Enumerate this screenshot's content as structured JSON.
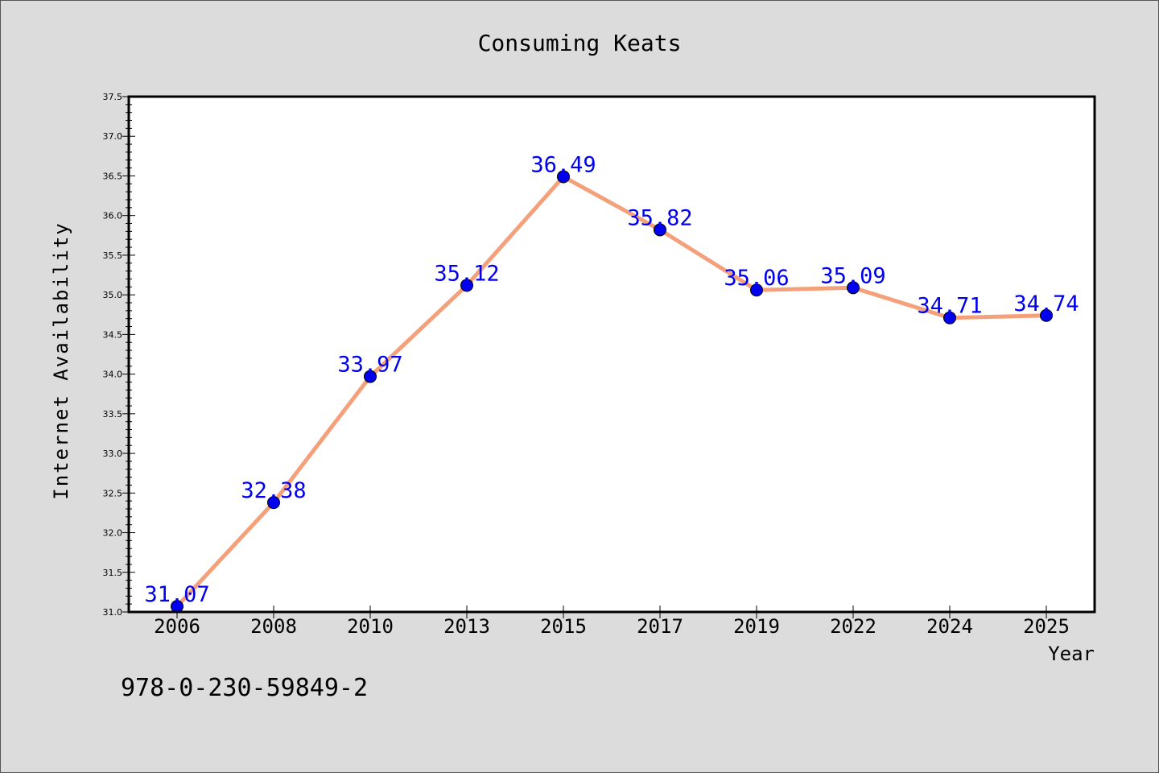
{
  "chart_data": {
    "type": "line",
    "title": "Consuming Keats",
    "xlabel": "Year",
    "ylabel": "Internet Availability",
    "categories": [
      "2006",
      "2008",
      "2010",
      "2013",
      "2015",
      "2017",
      "2019",
      "2022",
      "2024",
      "2025"
    ],
    "series": [
      {
        "values": [
          31.07,
          32.38,
          33.97,
          35.12,
          36.49,
          35.82,
          35.06,
          35.09,
          34.71,
          34.74
        ],
        "labels": [
          "31.07",
          "32.38",
          "33.97",
          "35.12",
          "36.49",
          "35.82",
          "35.06",
          "35.09",
          "34.71",
          "34.74"
        ],
        "line_color": "#f4a07a",
        "marker_color": "#0000ee",
        "label_color": "#0000ee"
      }
    ],
    "ylim": [
      31.0,
      37.5
    ],
    "yticks": [
      "31.0",
      "31.5",
      "32.0",
      "32.5",
      "33.0",
      "33.5",
      "34.0",
      "34.5",
      "35.0",
      "35.5",
      "36.0",
      "36.5",
      "37.0",
      "37.5"
    ],
    "grid": false,
    "legend": "none"
  },
  "isbn": "978-0-230-59849-2"
}
